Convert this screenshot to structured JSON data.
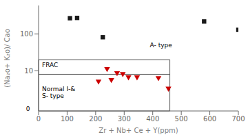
{
  "chart_data": {
    "type": "scatter",
    "xlabel": "Zr + Nb+ Ce + Y(ppm)",
    "ylabel": "(Na₂o+ K₂o)/ Cao",
    "log": "y",
    "grid": false,
    "xlim": [
      0,
      700
    ],
    "ylim": [
      0.8,
      600
    ],
    "xticks": [
      0,
      100,
      200,
      300,
      400,
      500,
      600,
      700
    ],
    "yticks": [
      10,
      100
    ],
    "series": [
      {
        "color": "#1a1a1a",
        "marker": "square",
        "x": [
          110,
          135,
          225,
          580,
          700
        ],
        "values": [
          270,
          275,
          82,
          220,
          130
        ]
      },
      {
        "color": "#cc0000",
        "marker": "triangle_down",
        "x": [
          210,
          240,
          255,
          275,
          295,
          315,
          345,
          420,
          455
        ],
        "values": [
          5.0,
          11.0,
          5.5,
          8.5,
          8.0,
          6.5,
          6.5,
          6.2,
          3.2
        ]
      }
    ],
    "shapes": [
      {
        "type": "rectangle",
        "x": [
          0,
          460
        ],
        "y": [
          0.8,
          20
        ],
        "color": "#555555"
      },
      {
        "type": "hline",
        "y": 8,
        "x": [
          0,
          460
        ],
        "color": "#555555"
      }
    ],
    "annotations": [
      {
        "text": "A- type",
        "x": 390,
        "y": 50
      },
      {
        "text": "FRAC",
        "x": 12,
        "y": 14
      },
      {
        "text": "Normal I-&\nS- type",
        "x": 12,
        "y": 2.5
      },
      {
        "text": "0",
        "x": -30,
        "y": 0.9
      }
    ]
  }
}
